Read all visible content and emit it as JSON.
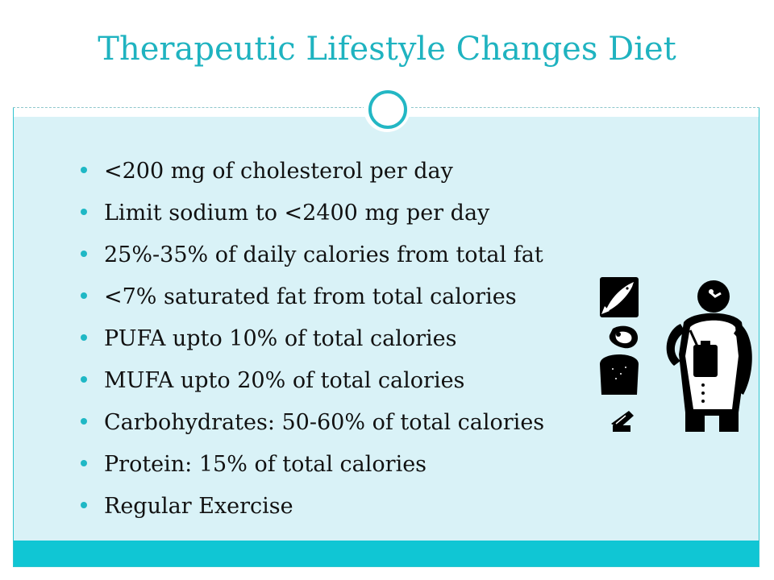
{
  "slide": {
    "title": "Therapeutic Lifestyle Changes Diet",
    "bullets": [
      "<200 mg of cholesterol per day",
      "Limit sodium to <2400 mg per day",
      "25%-35% of daily calories from total fat",
      "<7% saturated fat from total calories",
      "PUFA upto 10% of total calories",
      "MUFA upto 20% of total calories",
      "Carbohydrates: 50-60% of total calories",
      "Protein: 15% of total calories",
      "Regular Exercise"
    ]
  },
  "theme": {
    "accent": "#1fb3c0",
    "content_background": "#d9f2f7",
    "footer_bar": "#10c6d4"
  },
  "icons": [
    "fish-icon",
    "meat-steak-icon",
    "bread-slice-icon",
    "food-tray-icon",
    "doctor-with-clipboard-icon"
  ]
}
